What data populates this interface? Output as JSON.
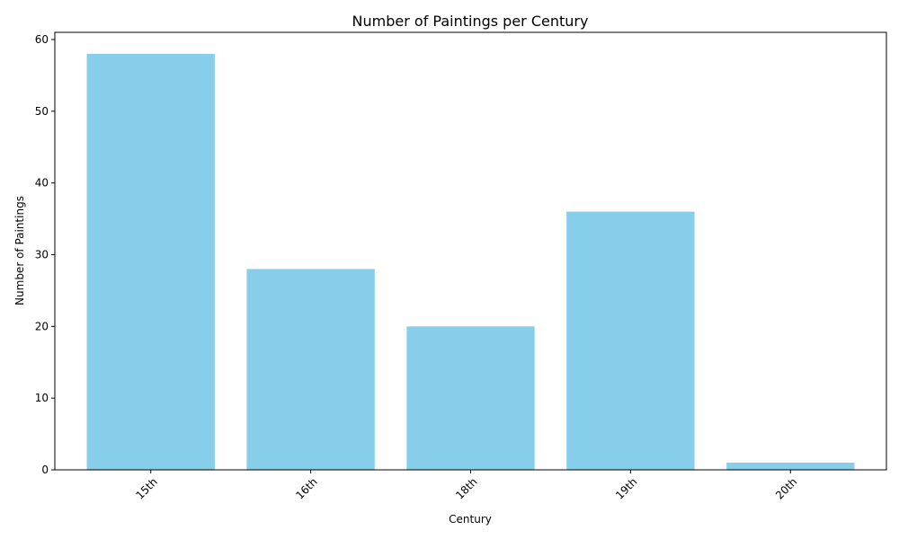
{
  "chart_data": {
    "type": "bar",
    "title": "Number of Paintings per Century",
    "xlabel": "Century",
    "ylabel": "Number of Paintings",
    "categories": [
      "15th",
      "16th",
      "18th",
      "19th",
      "20th"
    ],
    "values": [
      58,
      28,
      20,
      36,
      1
    ],
    "ylim": [
      0,
      61
    ],
    "yticks": [
      0,
      10,
      20,
      30,
      40,
      50,
      60
    ],
    "bar_color": "#87ceeb",
    "grid": false,
    "legend": "none"
  }
}
